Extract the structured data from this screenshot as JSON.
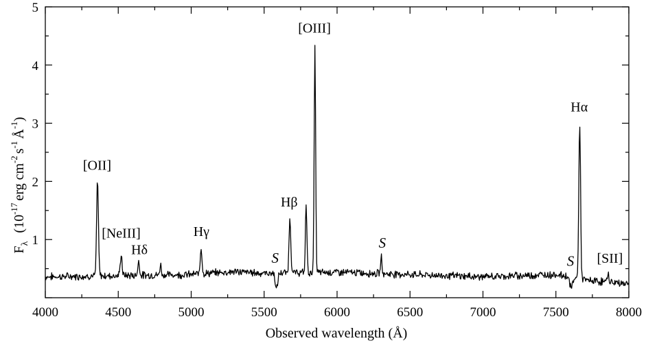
{
  "chart_data": {
    "type": "line",
    "title": "",
    "xlabel": "Observed wavelength (Å)",
    "ylabel": {
      "main": "F",
      "sub": "λ",
      "units_prefix": "(10",
      "units_exp": "-17",
      "units_erg": "erg cm",
      "units_exp2": "-2",
      "units_s": "s",
      "units_exp3": "-1",
      "units_A": "Å",
      "units_exp4": "-1",
      "units_close": ")"
    },
    "xlim": [
      4000,
      8000
    ],
    "ylim": [
      0,
      5
    ],
    "xticks": [
      4000,
      4500,
      5000,
      5500,
      6000,
      6500,
      7000,
      7500,
      8000
    ],
    "xtick_labels": [
      "4000",
      "4500",
      "5000",
      "5500",
      "6000",
      "6500",
      "7000",
      "7500",
      "8000"
    ],
    "yticks": [
      1,
      2,
      3,
      4,
      5
    ],
    "ytick_labels": [
      "1",
      "2",
      "3",
      "4",
      "5"
    ],
    "grid": false,
    "legend": "none",
    "series": [
      {
        "baseline": [
          [
            4000,
            0.36
          ],
          [
            4500,
            0.38
          ],
          [
            5000,
            0.4
          ],
          [
            5300,
            0.45
          ],
          [
            5500,
            0.42
          ],
          [
            6000,
            0.44
          ],
          [
            6500,
            0.4
          ],
          [
            7000,
            0.36
          ],
          [
            7500,
            0.4
          ],
          [
            7600,
            0.36
          ],
          [
            7700,
            0.3
          ],
          [
            8000,
            0.24
          ]
        ],
        "features": [
          {
            "x": 4358,
            "height": 1.66,
            "width": 6
          },
          {
            "x": 4520,
            "height": 0.36,
            "width": 6
          },
          {
            "x": 4640,
            "height": 0.24,
            "width": 6
          },
          {
            "x": 4790,
            "height": 0.18,
            "width": 5
          },
          {
            "x": 5068,
            "height": 0.46,
            "width": 6
          },
          {
            "x": 5585,
            "height": -0.28,
            "width": 8
          },
          {
            "x": 5677,
            "height": 0.95,
            "width": 6
          },
          {
            "x": 5788,
            "height": 1.2,
            "width": 5
          },
          {
            "x": 5848,
            "height": 3.86,
            "width": 5
          },
          {
            "x": 6303,
            "height": 0.28,
            "width": 5
          },
          {
            "x": 7605,
            "height": -0.2,
            "width": 9
          },
          {
            "x": 7663,
            "height": 2.66,
            "width": 6
          },
          {
            "x": 7858,
            "height": 0.14,
            "width": 6
          }
        ],
        "noise_amplitude": 0.05
      }
    ],
    "annotations": [
      {
        "text": "[OII]",
        "x": 4355,
        "y": 2.2,
        "style": "normal"
      },
      {
        "text": "[NeIII]",
        "x": 4520,
        "y": 1.03,
        "style": "normal"
      },
      {
        "text": "Hδ",
        "x": 4645,
        "y": 0.75,
        "style": "normal"
      },
      {
        "text": "Hγ",
        "x": 5070,
        "y": 1.06,
        "style": "normal"
      },
      {
        "text": "S",
        "x": 5575,
        "y": 0.6,
        "style": "italic"
      },
      {
        "text": "Hβ",
        "x": 5672,
        "y": 1.57,
        "style": "normal"
      },
      {
        "text": "[OIII]",
        "x": 5845,
        "y": 4.56,
        "style": "normal"
      },
      {
        "text": "S",
        "x": 6310,
        "y": 0.86,
        "style": "italic"
      },
      {
        "text": "S",
        "x": 7600,
        "y": 0.55,
        "style": "italic"
      },
      {
        "text": "Hα",
        "x": 7660,
        "y": 3.2,
        "style": "normal"
      },
      {
        "text": "[SII]",
        "x": 7870,
        "y": 0.6,
        "style": "normal"
      }
    ]
  }
}
